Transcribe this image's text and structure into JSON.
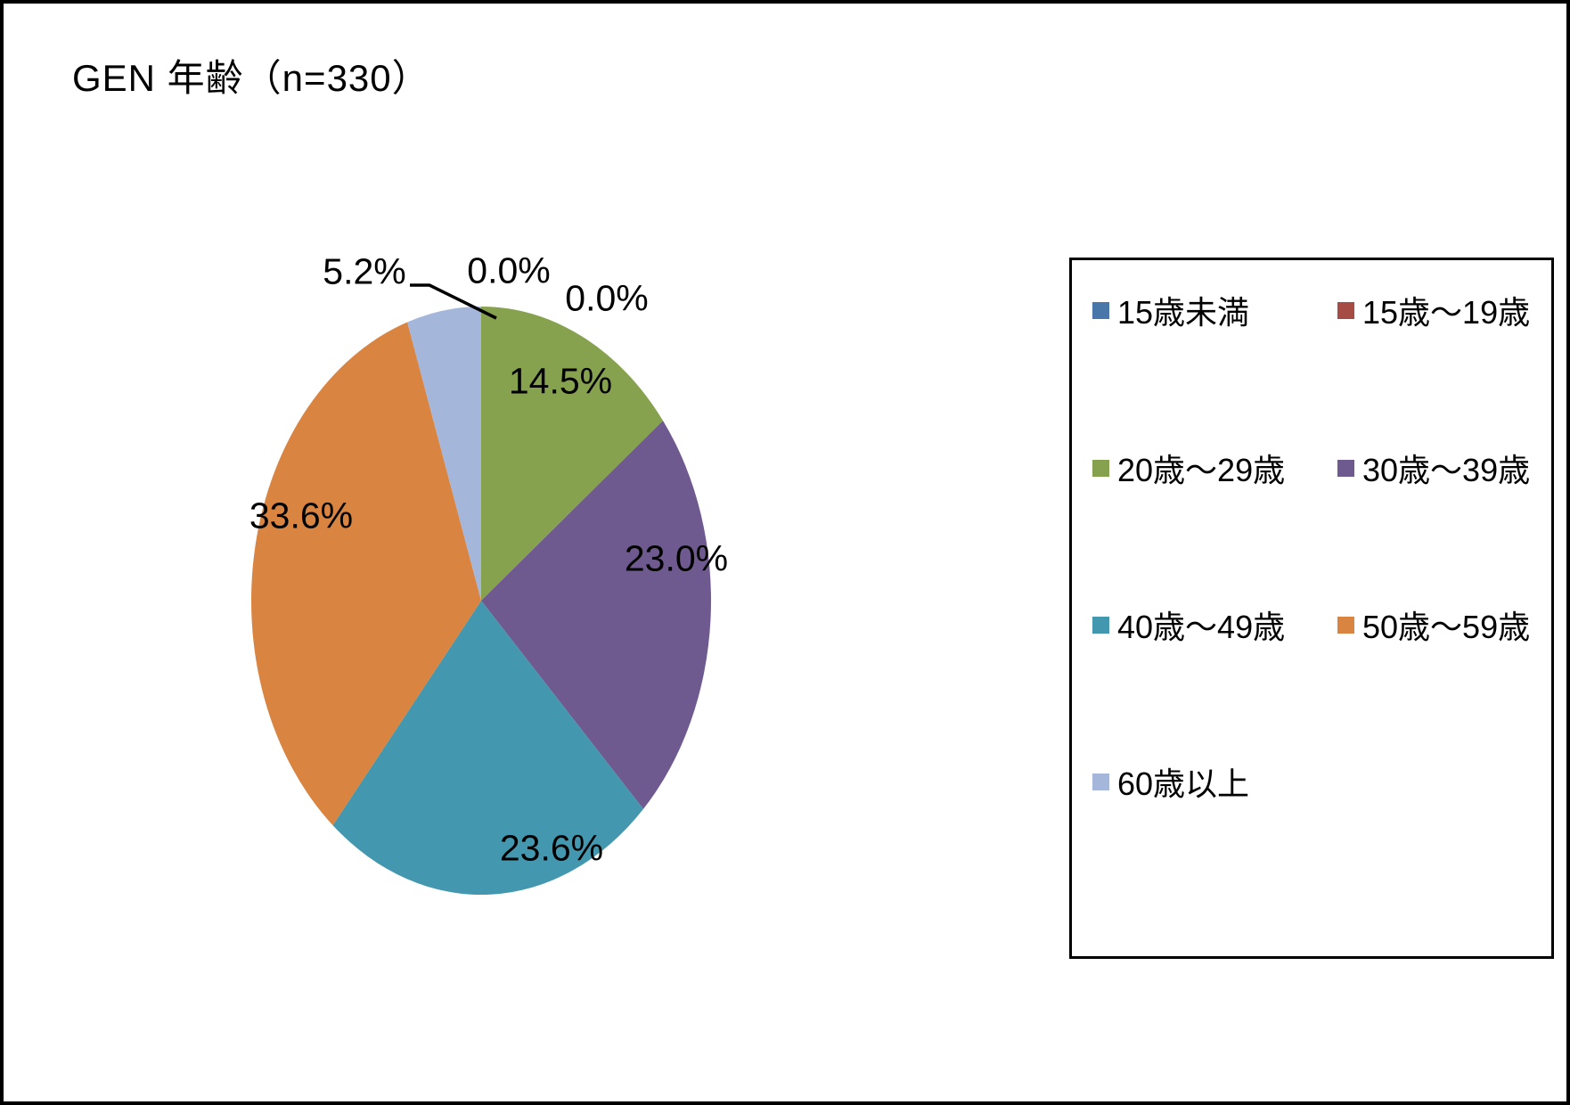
{
  "title": "GEN 年齢（n=330）",
  "chart_data": {
    "type": "pie",
    "title": "GEN 年齢（n=330）",
    "sample_size_label": "n=330",
    "n": 330,
    "unit": "%",
    "start_angle_deg": 0,
    "direction": "clockwise",
    "legend_position": "right",
    "slices": [
      {
        "label": "15歳未満",
        "value": 0.0,
        "display": "0.0%",
        "color": "#4a77a9"
      },
      {
        "label": "15歳～19歳",
        "value": 0.0,
        "display": "0.0%",
        "color": "#a74b45"
      },
      {
        "label": "20歳～29歳",
        "value": 14.5,
        "display": "14.5%",
        "color": "#87a24f"
      },
      {
        "label": "30歳～39歳",
        "value": 23.0,
        "display": "23.0%",
        "color": "#6f5a90"
      },
      {
        "label": "40歳～49歳",
        "value": 23.6,
        "display": "23.6%",
        "color": "#4397ae"
      },
      {
        "label": "50歳～59歳",
        "value": 33.6,
        "display": "33.6%",
        "color": "#d98440"
      },
      {
        "label": "60歳以上",
        "value": 5.2,
        "display": "5.2%",
        "color": "#a5b6db"
      }
    ]
  }
}
